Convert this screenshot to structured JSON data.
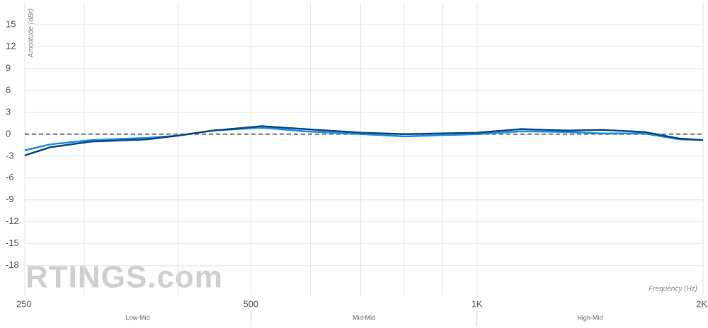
{
  "chart_data": {
    "type": "line",
    "x_label": "Frequency (Hz)",
    "y_label": "Amplitude (dBr)",
    "watermark": "RTINGS.com",
    "log_x": true,
    "grid": true,
    "xlim": [
      250,
      2000
    ],
    "ylim": [
      -22,
      18
    ],
    "xticks": [
      250,
      500,
      {
        "value": 1000,
        "label": "1K"
      },
      {
        "value": 2000,
        "label": "2K"
      }
    ],
    "xgrid": [
      300,
      400,
      600,
      700,
      800,
      900
    ],
    "yticks": [
      15,
      12,
      9,
      6,
      3,
      0,
      -3,
      -6,
      -9,
      -12,
      -15,
      -18
    ],
    "bands": [
      {
        "name": "Low-Mid",
        "range": [
          250,
          500
        ]
      },
      {
        "name": "Mid-Mid",
        "range": [
          500,
          1000
        ]
      },
      {
        "name": "High-Mid",
        "range": [
          1000,
          2000
        ]
      }
    ],
    "x": [
      250,
      270,
      307,
      364,
      400,
      445,
      517,
      590,
      703,
      800,
      1000,
      1146,
      1320,
      1470,
      1670,
      1860,
      2000
    ],
    "series": [
      {
        "color": "#1a8fe3",
        "values": [
          -2.2,
          -1.4,
          -0.8,
          -0.5,
          -0.2,
          0.5,
          0.9,
          0.4,
          0.0,
          -0.3,
          0.0,
          0.4,
          0.3,
          0.1,
          0.1,
          -0.7,
          -0.8
        ]
      },
      {
        "color": "#0d4a85",
        "values": [
          -2.9,
          -1.8,
          -1.0,
          -0.7,
          -0.2,
          0.5,
          1.1,
          0.7,
          0.2,
          0.0,
          0.2,
          0.7,
          0.5,
          0.6,
          0.3,
          -0.6,
          -0.8
        ]
      }
    ],
    "target": {
      "color": "#777777",
      "x": [
        250,
        2000
      ],
      "values": [
        0,
        0
      ]
    }
  }
}
